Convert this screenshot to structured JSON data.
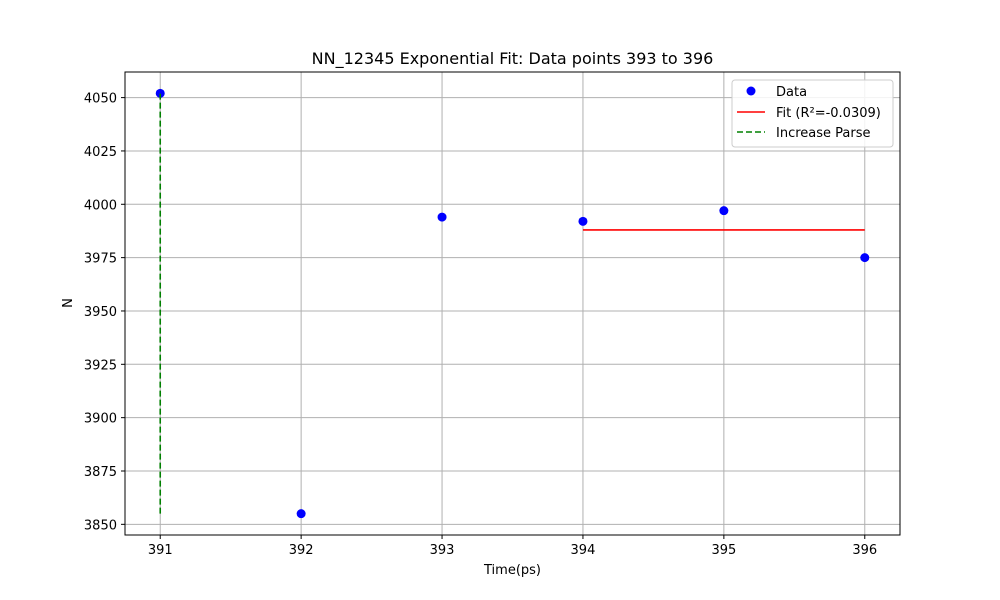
{
  "chart_data": {
    "type": "scatter",
    "title": "NN_12345 Exponential Fit: Data points 393 to 396",
    "xlabel": "Time(ps)",
    "ylabel": "N",
    "xlim": [
      390.75,
      396.25
    ],
    "ylim": [
      3845,
      4062
    ],
    "xticks": [
      391,
      392,
      393,
      394,
      395,
      396
    ],
    "yticks": [
      3850,
      3875,
      3900,
      3925,
      3950,
      3975,
      4000,
      4025,
      4050
    ],
    "grid": true,
    "legend_position": "upper right",
    "series": [
      {
        "name": "Data",
        "kind": "scatter",
        "color": "#0000ff",
        "x": [
          391,
          392,
          393,
          394,
          395,
          396
        ],
        "y": [
          4052,
          3855,
          3994,
          3992,
          3997,
          3975
        ]
      },
      {
        "name": "Fit (R²=-0.0309)",
        "kind": "line",
        "color": "#ff0000",
        "x": [
          394,
          396
        ],
        "y": [
          3988,
          3988
        ]
      },
      {
        "name": "Increase Parse",
        "kind": "dashed-line",
        "color": "#008000",
        "x": [
          391,
          391
        ],
        "y": [
          3855,
          4052
        ]
      }
    ]
  }
}
